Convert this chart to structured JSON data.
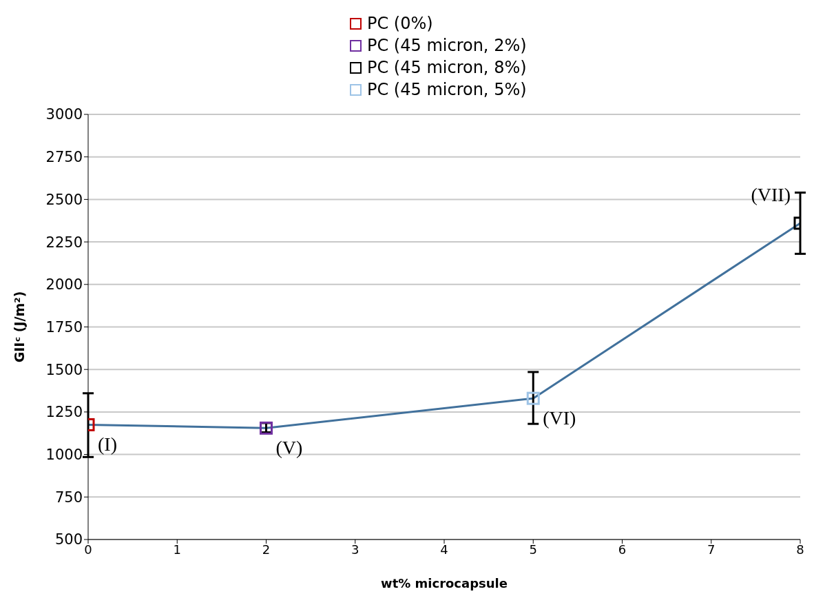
{
  "chart_data": {
    "type": "scatter",
    "xlabel": "wt% microcapsule",
    "ylabel": "GIIᶜ (J/m²)",
    "xlim": [
      0,
      8
    ],
    "xticks": [
      0,
      1,
      2,
      3,
      4,
      5,
      6,
      7,
      8
    ],
    "ylim": [
      500,
      3000
    ],
    "yticks": [
      500,
      750,
      1000,
      1250,
      1500,
      1750,
      2000,
      2250,
      2500,
      2750,
      3000
    ],
    "grid": "y",
    "legend": "top",
    "marker": "square",
    "series": [
      {
        "type": "line",
        "color": "#41719c",
        "x": [
          0,
          2,
          5,
          8
        ],
        "values": [
          1175,
          1155,
          1330,
          2360
        ],
        "marker": "none"
      },
      {
        "name": "PC (0%)",
        "color": "#c00000",
        "x": [
          0
        ],
        "values": [
          1175
        ],
        "errors": [
          [
            985,
            1360
          ]
        ]
      },
      {
        "name": "PC (45 micron, 2%)",
        "color": "#7030a0",
        "x": [
          2
        ],
        "values": [
          1155
        ],
        "errors": [
          [
            1130,
            1185
          ]
        ]
      },
      {
        "name": "PC (45 micron, 8%)",
        "color": "#000000",
        "x": [
          8
        ],
        "values": [
          2360
        ],
        "errors": [
          [
            2180,
            2540
          ]
        ]
      },
      {
        "name": "PC (45 micron, 5%)",
        "color": "#9dc3e6",
        "x": [
          5
        ],
        "values": [
          1330
        ],
        "errors": [
          [
            1180,
            1485
          ]
        ]
      }
    ],
    "annotations": [
      {
        "text": "(I)",
        "x": 0,
        "y": 1175
      },
      {
        "text": "(V)",
        "x": 2,
        "y": 1155
      },
      {
        "text": "(VI)",
        "x": 5,
        "y": 1330
      },
      {
        "text": "(VII)",
        "x": 8,
        "y": 2360
      }
    ]
  }
}
